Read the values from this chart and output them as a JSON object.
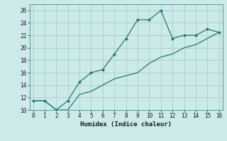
{
  "xlabel": "Humidex (Indice chaleur)",
  "x": [
    0,
    1,
    2,
    3,
    4,
    5,
    6,
    7,
    8,
    9,
    10,
    11,
    12,
    13,
    14,
    15,
    16
  ],
  "y_curve": [
    11.5,
    11.5,
    10.0,
    11.5,
    14.5,
    16.0,
    16.5,
    19.0,
    21.5,
    24.5,
    24.5,
    26.0,
    21.5,
    22.0,
    22.0,
    23.0,
    22.5
  ],
  "y_line": [
    11.5,
    11.5,
    10.0,
    10.0,
    12.5,
    13.0,
    14.0,
    15.0,
    15.5,
    16.0,
    17.5,
    18.5,
    19.0,
    20.0,
    20.5,
    21.5,
    22.5
  ],
  "ylim": [
    10,
    27
  ],
  "xlim": [
    -0.3,
    16.3
  ],
  "yticks": [
    10,
    12,
    14,
    16,
    18,
    20,
    22,
    24,
    26
  ],
  "xticks": [
    0,
    1,
    2,
    3,
    4,
    5,
    6,
    7,
    8,
    9,
    10,
    11,
    12,
    13,
    14,
    15,
    16
  ],
  "line_color": "#1a7a6e",
  "bg_color": "#cceaea",
  "grid_color": "#aacccc"
}
